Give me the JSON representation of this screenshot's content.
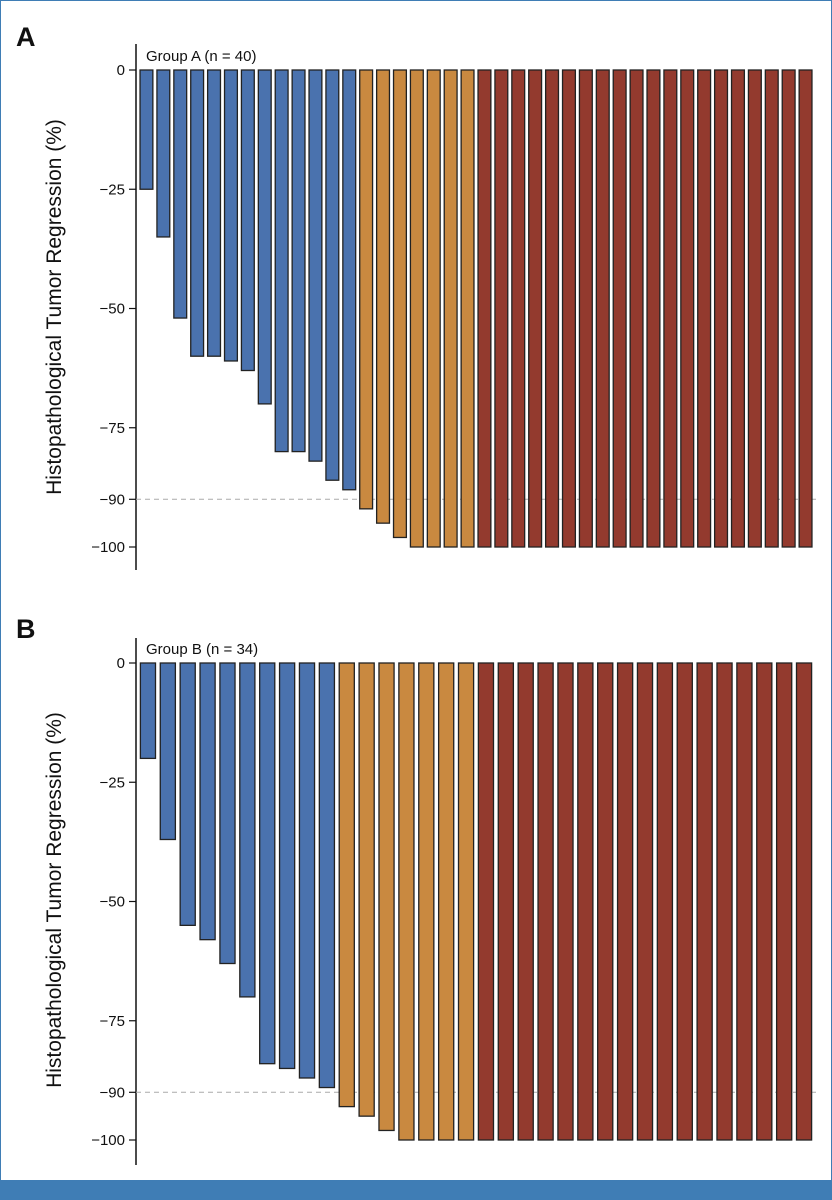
{
  "chart_data": [
    {
      "type": "bar",
      "panel": "A",
      "group_label": "Group A (n = 40)",
      "ylabel": "Histopathological Tumor Regression (%)",
      "xlabel": "",
      "ylim": [
        -100,
        0
      ],
      "yticks": [
        0,
        -25,
        -50,
        -75,
        -90,
        -100
      ],
      "ytick_labels": [
        "0",
        "−25",
        "−50",
        "−75",
        "−90",
        "−100"
      ],
      "reference_line": -90,
      "values": [
        -25,
        -35,
        -52,
        -60,
        -60,
        -61,
        -63,
        -70,
        -80,
        -80,
        -82,
        -86,
        -88,
        -92,
        -95,
        -98,
        -100,
        -100,
        -100,
        -100,
        -100,
        -100,
        -100,
        -100,
        -100,
        -100,
        -100,
        -100,
        -100,
        -100,
        -100,
        -100,
        -100,
        -100,
        -100,
        -100,
        -100,
        -100,
        -100,
        -100
      ],
      "categories": [
        "blue",
        "blue",
        "blue",
        "blue",
        "blue",
        "blue",
        "blue",
        "blue",
        "blue",
        "blue",
        "blue",
        "blue",
        "blue",
        "orange",
        "orange",
        "orange",
        "orange",
        "orange",
        "orange",
        "orange",
        "red",
        "red",
        "red",
        "red",
        "red",
        "red",
        "red",
        "red",
        "red",
        "red",
        "red",
        "red",
        "red",
        "red",
        "red",
        "red",
        "red",
        "red",
        "red",
        "red"
      ]
    },
    {
      "type": "bar",
      "panel": "B",
      "group_label": "Group B (n = 34)",
      "ylabel": "Histopathological Tumor Regression (%)",
      "xlabel": "",
      "ylim": [
        -100,
        0
      ],
      "yticks": [
        0,
        -25,
        -50,
        -75,
        -90,
        -100
      ],
      "ytick_labels": [
        "0",
        "−25",
        "−50",
        "−75",
        "−90",
        "−100"
      ],
      "reference_line": -90,
      "values": [
        -20,
        -37,
        -55,
        -58,
        -63,
        -70,
        -84,
        -85,
        -87,
        -89,
        -93,
        -95,
        -98,
        -100,
        -100,
        -100,
        -100,
        -100,
        -100,
        -100,
        -100,
        -100,
        -100,
        -100,
        -100,
        -100,
        -100,
        -100,
        -100,
        -100,
        -100,
        -100,
        -100,
        -100
      ],
      "categories": [
        "blue",
        "blue",
        "blue",
        "blue",
        "blue",
        "blue",
        "blue",
        "blue",
        "blue",
        "blue",
        "orange",
        "orange",
        "orange",
        "orange",
        "orange",
        "orange",
        "orange",
        "red",
        "red",
        "red",
        "red",
        "red",
        "red",
        "red",
        "red",
        "red",
        "red",
        "red",
        "red",
        "red",
        "red",
        "red",
        "red",
        "red"
      ]
    }
  ],
  "colors": {
    "blue": "#4a72ae",
    "orange": "#c98940",
    "red": "#933a2e",
    "frame": "#3f7db5"
  }
}
